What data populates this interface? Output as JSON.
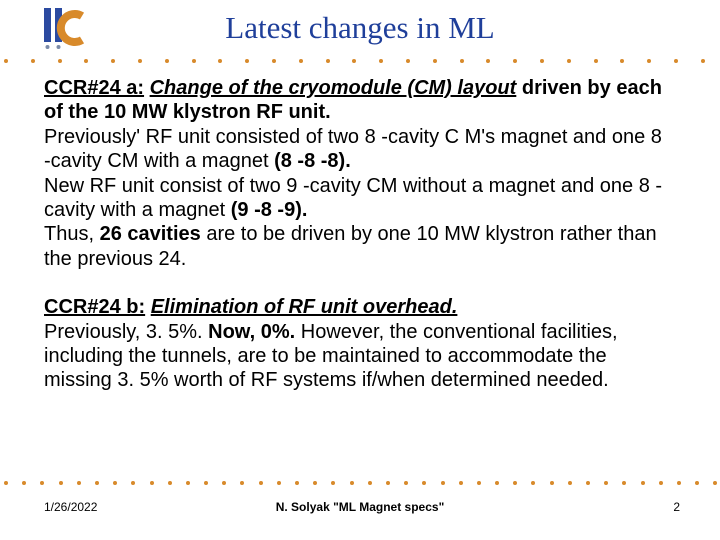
{
  "title": "Latest changes in ML",
  "logo": {
    "bar1_color": "#2b4aa0",
    "bar2_color": "#2b4aa0",
    "c_color": "#d88a2b"
  },
  "dots": {
    "color": "#d88a2b",
    "top_count": 27,
    "bottom_count": 40
  },
  "block_a": {
    "label": "CCR#24 a:",
    "heading_bold_italic": "Change of the cryomodule (CM) layout",
    "heading_tail_bold": " driven by each of the 10 MW klystron RF unit.",
    "line2a": "Previously' RF unit consisted of two 8 -cavity C M's magnet and one 8 -cavity CM with a magnet ",
    "line2b_bold": "(8 -8 -8).",
    "line3a": "New RF unit consist of two 9 -cavity CM without a magnet and one 8 -cavity with a magnet ",
    "line3b_bold": "(9 -8 -9).",
    "line4a": "Thus, ",
    "line4b_bold": "26 cavities",
    "line4c": " are to be driven by one 10 MW klystron rather than the previous 24."
  },
  "block_b": {
    "label": "CCR#24 b:",
    "heading_bold_italic": "Elimination of RF unit overhead.",
    "line2a": "Previously, 3. 5%. ",
    "line2b_bold": "Now, 0%.",
    "line2c": " However, the conventional facilities, including the tunnels, are to be maintained to accommodate the missing 3. 5% worth of RF systems if/when determined needed."
  },
  "footer": {
    "date": "1/26/2022",
    "center": "N. Solyak \"ML Magnet specs\"",
    "page": "2"
  }
}
